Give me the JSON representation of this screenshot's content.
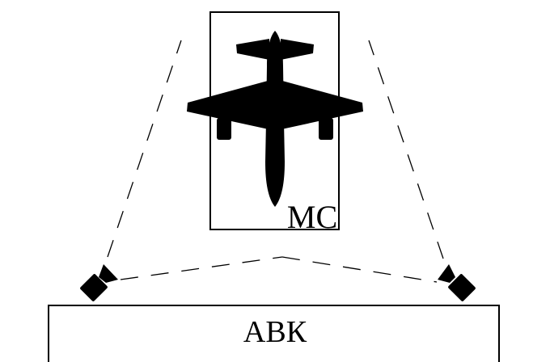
{
  "diagram": {
    "stand_label": "МС",
    "building_label": "АВК",
    "colors": {
      "stroke": "#000000",
      "fill": "#000000",
      "background": "#ffffff"
    },
    "icons": [
      "airplane-icon",
      "camera-icon",
      "camera-icon"
    ]
  }
}
